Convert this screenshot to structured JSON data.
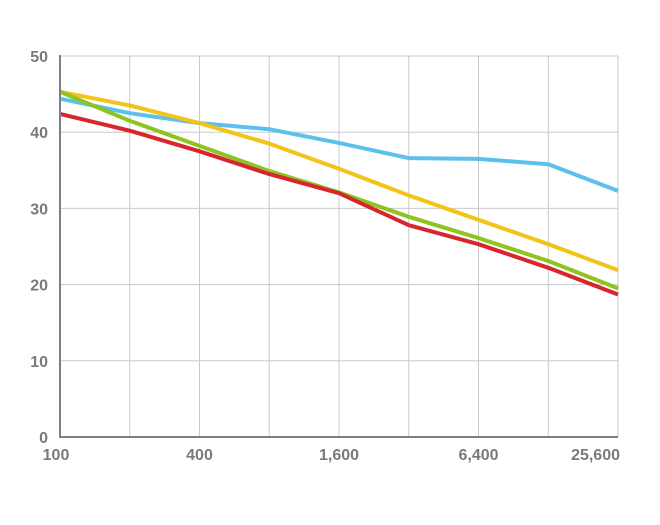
{
  "chart_data": {
    "type": "line",
    "title": "",
    "xlabel": "",
    "ylabel": "",
    "x_scale": "log2",
    "x": [
      100,
      200,
      400,
      800,
      1600,
      3200,
      6400,
      12800,
      25600
    ],
    "xlim": [
      100,
      25600
    ],
    "ylim": [
      0,
      50
    ],
    "x_ticks": [
      100,
      400,
      1600,
      6400,
      25600
    ],
    "x_tick_labels": [
      "100",
      "400",
      "1,600",
      "6,400",
      "25,600"
    ],
    "y_ticks": [
      0,
      10,
      20,
      30,
      40,
      50
    ],
    "y_tick_labels": [
      "0",
      "10",
      "20",
      "30",
      "40",
      "50"
    ],
    "grid": true,
    "legend": "none",
    "series": [
      {
        "color": "#5bc0eb",
        "values": [
          44.4,
          42.5,
          41.2,
          40.4,
          38.6,
          36.6,
          36.5,
          35.8,
          32.3
        ]
      },
      {
        "color": "#f2c318",
        "values": [
          45.3,
          43.5,
          41.2,
          38.5,
          35.2,
          31.7,
          28.5,
          25.3,
          21.9
        ]
      },
      {
        "color": "#8fc31f",
        "values": [
          45.3,
          41.5,
          38.2,
          34.9,
          32.1,
          28.9,
          26.1,
          23.1,
          19.5
        ]
      },
      {
        "color": "#d7262e",
        "values": [
          42.4,
          40.2,
          37.5,
          34.5,
          32.0,
          27.8,
          25.3,
          22.2,
          18.7
        ]
      }
    ]
  }
}
